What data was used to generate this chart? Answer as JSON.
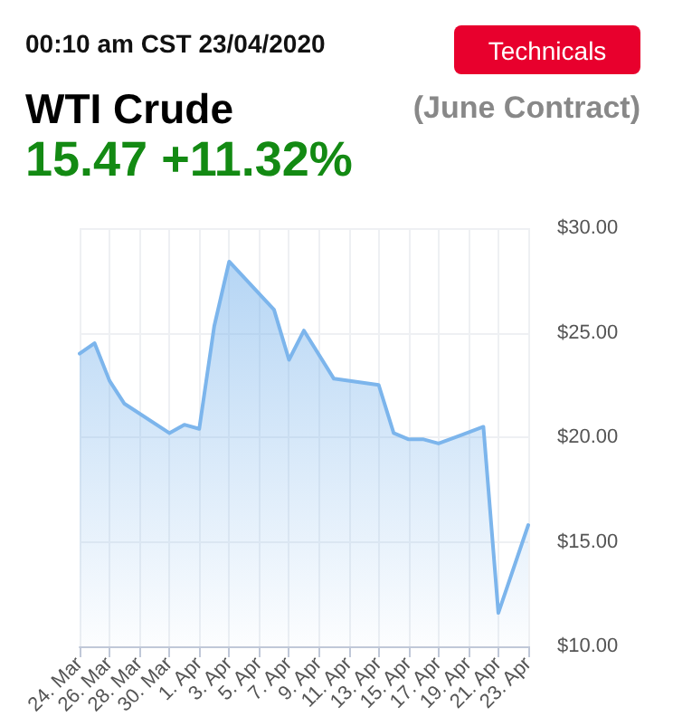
{
  "chart_data": {
    "type": "area",
    "title": "WTI Crude",
    "subtitle": "00:10 am CST 23/04/2020",
    "annotations": [
      "(June Contract)",
      "15.47 +11.32%",
      "Technicals"
    ],
    "x": [
      "2020-03-24",
      "2020-03-25",
      "2020-03-26",
      "2020-03-27",
      "2020-03-30",
      "2020-03-31",
      "2020-04-01",
      "2020-04-02",
      "2020-04-03",
      "2020-04-06",
      "2020-04-07",
      "2020-04-08",
      "2020-04-10",
      "2020-04-13",
      "2020-04-14",
      "2020-04-15",
      "2020-04-16",
      "2020-04-17",
      "2020-04-20",
      "2020-04-21",
      "2020-04-23"
    ],
    "series": [
      {
        "color": "#7cb5ec",
        "values": [
          24.0,
          24.5,
          22.7,
          21.6,
          20.2,
          20.6,
          20.4,
          25.3,
          28.4,
          26.1,
          23.7,
          25.1,
          22.8,
          22.5,
          20.2,
          19.9,
          19.9,
          19.7,
          20.5,
          11.6,
          15.8
        ]
      }
    ],
    "xlim": [
      "2020-03-24",
      "2020-04-23"
    ],
    "xticks": [
      {
        "value": "2020-03-24",
        "label": "24. Mar"
      },
      {
        "value": "2020-03-26",
        "label": "26. Mar"
      },
      {
        "value": "2020-03-28",
        "label": "28. Mar"
      },
      {
        "value": "2020-03-30",
        "label": "30. Mar"
      },
      {
        "value": "2020-04-01",
        "label": "1. Apr"
      },
      {
        "value": "2020-04-03",
        "label": "3. Apr"
      },
      {
        "value": "2020-04-05",
        "label": "5. Apr"
      },
      {
        "value": "2020-04-07",
        "label": "7. Apr"
      },
      {
        "value": "2020-04-09",
        "label": "9. Apr"
      },
      {
        "value": "2020-04-11",
        "label": "11. Apr"
      },
      {
        "value": "2020-04-13",
        "label": "13. Apr"
      },
      {
        "value": "2020-04-15",
        "label": "15. Apr"
      },
      {
        "value": "2020-04-17",
        "label": "17. Apr"
      },
      {
        "value": "2020-04-19",
        "label": "19. Apr"
      },
      {
        "value": "2020-04-21",
        "label": "21. Apr"
      },
      {
        "value": "2020-04-23",
        "label": "23. Apr"
      }
    ],
    "ylim": [
      10,
      30
    ],
    "yticks": [
      {
        "value": 10,
        "label": "$10.00"
      },
      {
        "value": 15,
        "label": "$15.00"
      },
      {
        "value": 20,
        "label": "$20.00"
      },
      {
        "value": 25,
        "label": "$25.00"
      },
      {
        "value": 30,
        "label": "$30.00"
      }
    ],
    "grid": true,
    "marker": "none",
    "line_style": "solid"
  }
}
